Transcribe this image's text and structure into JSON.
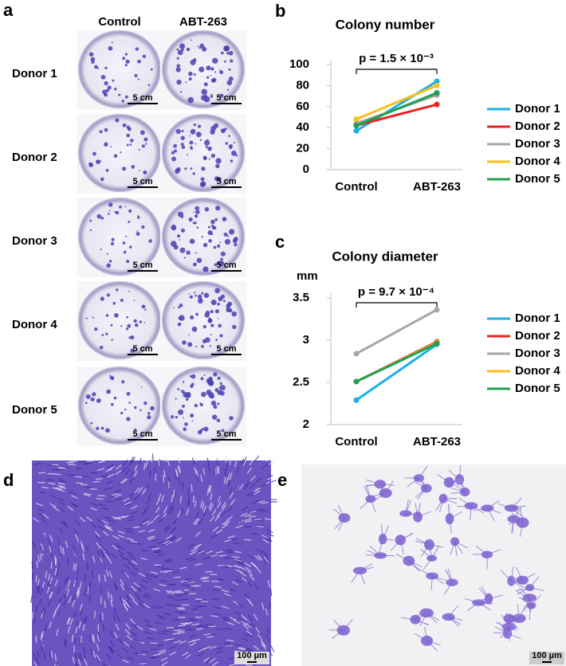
{
  "panel_a": {
    "letter": "a",
    "columns": [
      "Control",
      "ABT-263"
    ],
    "rows": [
      "Donor 1",
      "Donor 2",
      "Donor 3",
      "Donor 4",
      "Donor 5"
    ],
    "scale_bar": "5 cm"
  },
  "chart_data": [
    {
      "type": "line",
      "panel": "b",
      "title": "Colony number",
      "annotation": "p = 1.5 × 10⁻³",
      "categories": [
        "Control",
        "ABT-263"
      ],
      "ylim": [
        0,
        100
      ],
      "yticks": [
        0,
        20,
        40,
        60,
        80,
        100
      ],
      "series": [
        {
          "name": "Donor 1",
          "color": "#1ab0e8",
          "values": [
            37,
            84
          ]
        },
        {
          "name": "Donor 2",
          "color": "#e8231f",
          "values": [
            42,
            62
          ]
        },
        {
          "name": "Donor 3",
          "color": "#a6a6a6",
          "values": [
            44,
            71
          ]
        },
        {
          "name": "Donor 4",
          "color": "#fbbe1a",
          "values": [
            48,
            80
          ]
        },
        {
          "name": "Donor 5",
          "color": "#1fa050",
          "values": [
            42,
            73
          ]
        }
      ]
    },
    {
      "type": "line",
      "panel": "c",
      "title": "Colony diameter",
      "y_label": "mm",
      "annotation": "p = 9.7 × 10⁻⁴",
      "categories": [
        "Control",
        "ABT-263"
      ],
      "ylim": [
        2,
        3.5
      ],
      "yticks": [
        2,
        2.5,
        3,
        3.5
      ],
      "series": [
        {
          "name": "Donor 1",
          "color": "#1ab0e8",
          "values": [
            2.29,
            2.95
          ]
        },
        {
          "name": "Donor 2",
          "color": "#e8231f",
          "values": [
            2.51,
            2.98
          ]
        },
        {
          "name": "Donor 3",
          "color": "#a6a6a6",
          "values": [
            2.84,
            3.36
          ]
        },
        {
          "name": "Donor 4",
          "color": "#fbbe1a",
          "values": [
            2.51,
            2.97
          ]
        },
        {
          "name": "Donor 5",
          "color": "#1fa050",
          "values": [
            2.51,
            2.96
          ]
        }
      ]
    }
  ],
  "panel_d": {
    "letter": "d",
    "scale_bar": "100 µm"
  },
  "panel_e": {
    "letter": "e",
    "scale_bar": "100 µm"
  }
}
